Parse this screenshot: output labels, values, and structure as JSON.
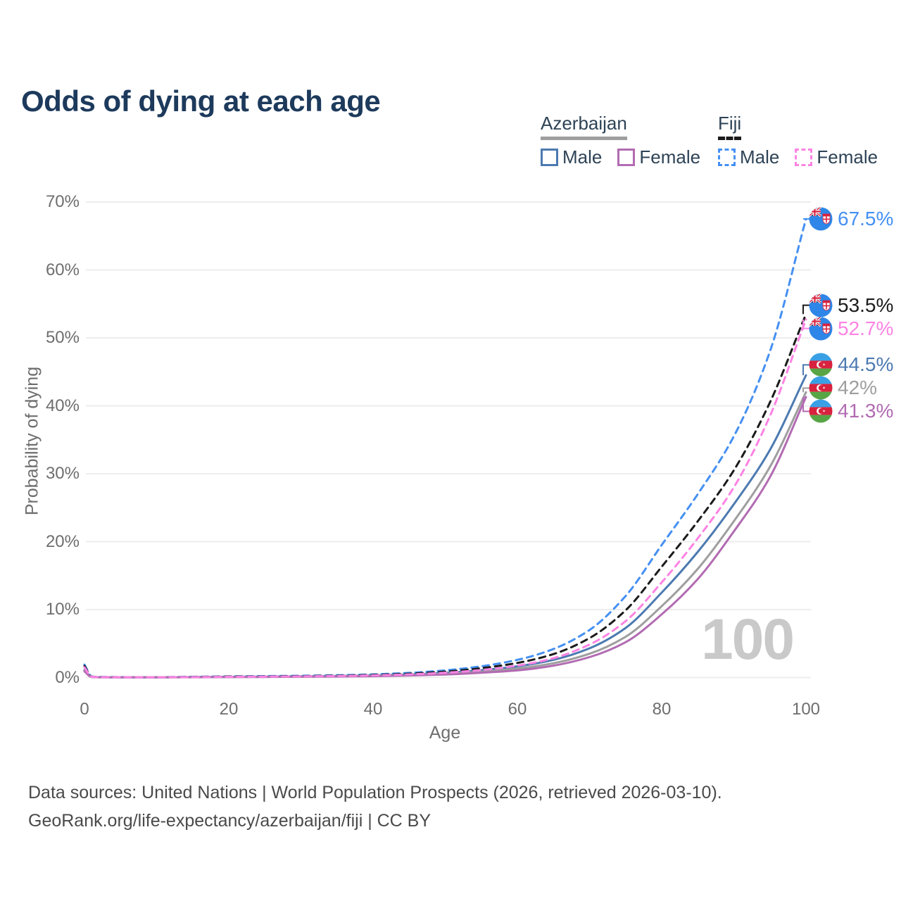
{
  "title": "Odds of dying at each age",
  "watermark": "100",
  "footer": {
    "line1": "Data sources: United Nations | World Population Prospects (2026, retrieved 2026-03-10).",
    "line2": "GeoRank.org/life-expectancy/azerbaijan/fiji | CC BY"
  },
  "legend": {
    "groups": [
      {
        "country": "Azerbaijan",
        "underline_style": "solid",
        "underline_color": "#9e9e9e",
        "items": [
          {
            "label": "Male",
            "color": "#4c7ab1",
            "line_style": "solid"
          },
          {
            "label": "Female",
            "color": "#b26bb2",
            "line_style": "solid"
          }
        ]
      },
      {
        "country": "Fiji",
        "underline_style": "dashed",
        "underline_color": "#1b1b1b",
        "items": [
          {
            "label": "Male",
            "color": "#4590f2",
            "line_style": "dashed"
          },
          {
            "label": "Female",
            "color": "#fc83e3",
            "line_style": "dashed"
          }
        ]
      }
    ]
  },
  "chart_data": {
    "type": "line",
    "title": "Odds of dying at each age",
    "xlabel": "Age",
    "ylabel": "Probability of dying",
    "xlim": [
      0,
      100
    ],
    "ylim": [
      0,
      70
    ],
    "grid": "horizontal-only",
    "legend_position": "top-right",
    "x_ticks": [
      "0",
      "20",
      "40",
      "60",
      "80",
      "100"
    ],
    "y_ticks": [
      "0%",
      "10%",
      "20%",
      "30%",
      "40%",
      "50%",
      "60%",
      "70%"
    ],
    "x": [
      0,
      1,
      2,
      5,
      10,
      15,
      20,
      25,
      30,
      35,
      40,
      45,
      50,
      55,
      60,
      65,
      70,
      75,
      80,
      85,
      90,
      95,
      100
    ],
    "series": [
      {
        "name": "Fiji — Male",
        "country": "Fiji",
        "sex": "male",
        "color": "#4590f2",
        "line_style": "dashed",
        "icon": "fiji-flag-icon",
        "end_label": "67.5%",
        "end_value": 67.5,
        "label_color": "#4590f2",
        "values": [
          1.9,
          0.15,
          0.08,
          0.06,
          0.05,
          0.1,
          0.17,
          0.21,
          0.26,
          0.33,
          0.46,
          0.68,
          1.05,
          1.65,
          2.6,
          4.2,
          7.0,
          12.0,
          19.5,
          27.0,
          35.5,
          48.0,
          67.5
        ]
      },
      {
        "name": "Fiji — Both sexes",
        "country": "Fiji",
        "sex": "both",
        "color": "#1b1b1b",
        "line_style": "dashed",
        "icon": "fiji-flag-icon",
        "end_label": "53.5%",
        "end_value": 53.5,
        "label_color": "#1b1b1b",
        "values": [
          1.7,
          0.13,
          0.07,
          0.055,
          0.045,
          0.085,
          0.14,
          0.17,
          0.21,
          0.27,
          0.38,
          0.56,
          0.87,
          1.38,
          2.15,
          3.45,
          5.8,
          9.9,
          16.3,
          23.0,
          30.5,
          40.5,
          53.5
        ]
      },
      {
        "name": "Fiji — Female",
        "country": "Fiji",
        "sex": "female",
        "color": "#fc83e3",
        "line_style": "dashed",
        "icon": "fiji-flag-icon",
        "end_label": "52.7%",
        "end_value": 52.7,
        "label_color": "#fc83e3",
        "values": [
          1.5,
          0.11,
          0.06,
          0.05,
          0.04,
          0.065,
          0.1,
          0.13,
          0.17,
          0.22,
          0.31,
          0.46,
          0.7,
          1.1,
          1.75,
          2.85,
          4.85,
          8.3,
          14.0,
          20.5,
          28.0,
          38.5,
          52.7
        ]
      },
      {
        "name": "Azerbaijan — Male",
        "country": "Azerbaijan",
        "sex": "male",
        "color": "#4c7ab1",
        "line_style": "solid",
        "icon": "azerbaijan-flag-icon",
        "end_label": "44.5%",
        "end_value": 44.5,
        "label_color": "#4c7ab1",
        "values": [
          1.1,
          0.09,
          0.05,
          0.04,
          0.035,
          0.06,
          0.1,
          0.13,
          0.17,
          0.22,
          0.31,
          0.45,
          0.7,
          1.08,
          1.65,
          2.6,
          4.3,
          7.3,
          12.5,
          18.5,
          25.5,
          33.5,
          44.5
        ]
      },
      {
        "name": "Azerbaijan — Both sexes",
        "country": "Azerbaijan",
        "sex": "both",
        "color": "#9e9e9e",
        "line_style": "solid",
        "icon": "azerbaijan-flag-icon",
        "end_label": "42%",
        "end_value": 42,
        "label_color": "#9e9e9e",
        "values": [
          1.0,
          0.08,
          0.045,
          0.035,
          0.03,
          0.05,
          0.08,
          0.1,
          0.13,
          0.18,
          0.25,
          0.36,
          0.56,
          0.86,
          1.32,
          2.1,
          3.5,
          6.0,
          10.5,
          16.0,
          23.0,
          31.0,
          42.0
        ]
      },
      {
        "name": "Azerbaijan — Female",
        "country": "Azerbaijan",
        "sex": "female",
        "color": "#b26bb2",
        "line_style": "solid",
        "icon": "azerbaijan-flag-icon",
        "end_label": "41.3%",
        "end_value": 41.3,
        "label_color": "#b26bb2",
        "values": [
          0.9,
          0.07,
          0.04,
          0.03,
          0.028,
          0.042,
          0.065,
          0.085,
          0.11,
          0.14,
          0.2,
          0.3,
          0.45,
          0.7,
          1.05,
          1.75,
          3.0,
          5.2,
          9.3,
          14.5,
          21.5,
          29.5,
          41.3
        ]
      }
    ]
  }
}
